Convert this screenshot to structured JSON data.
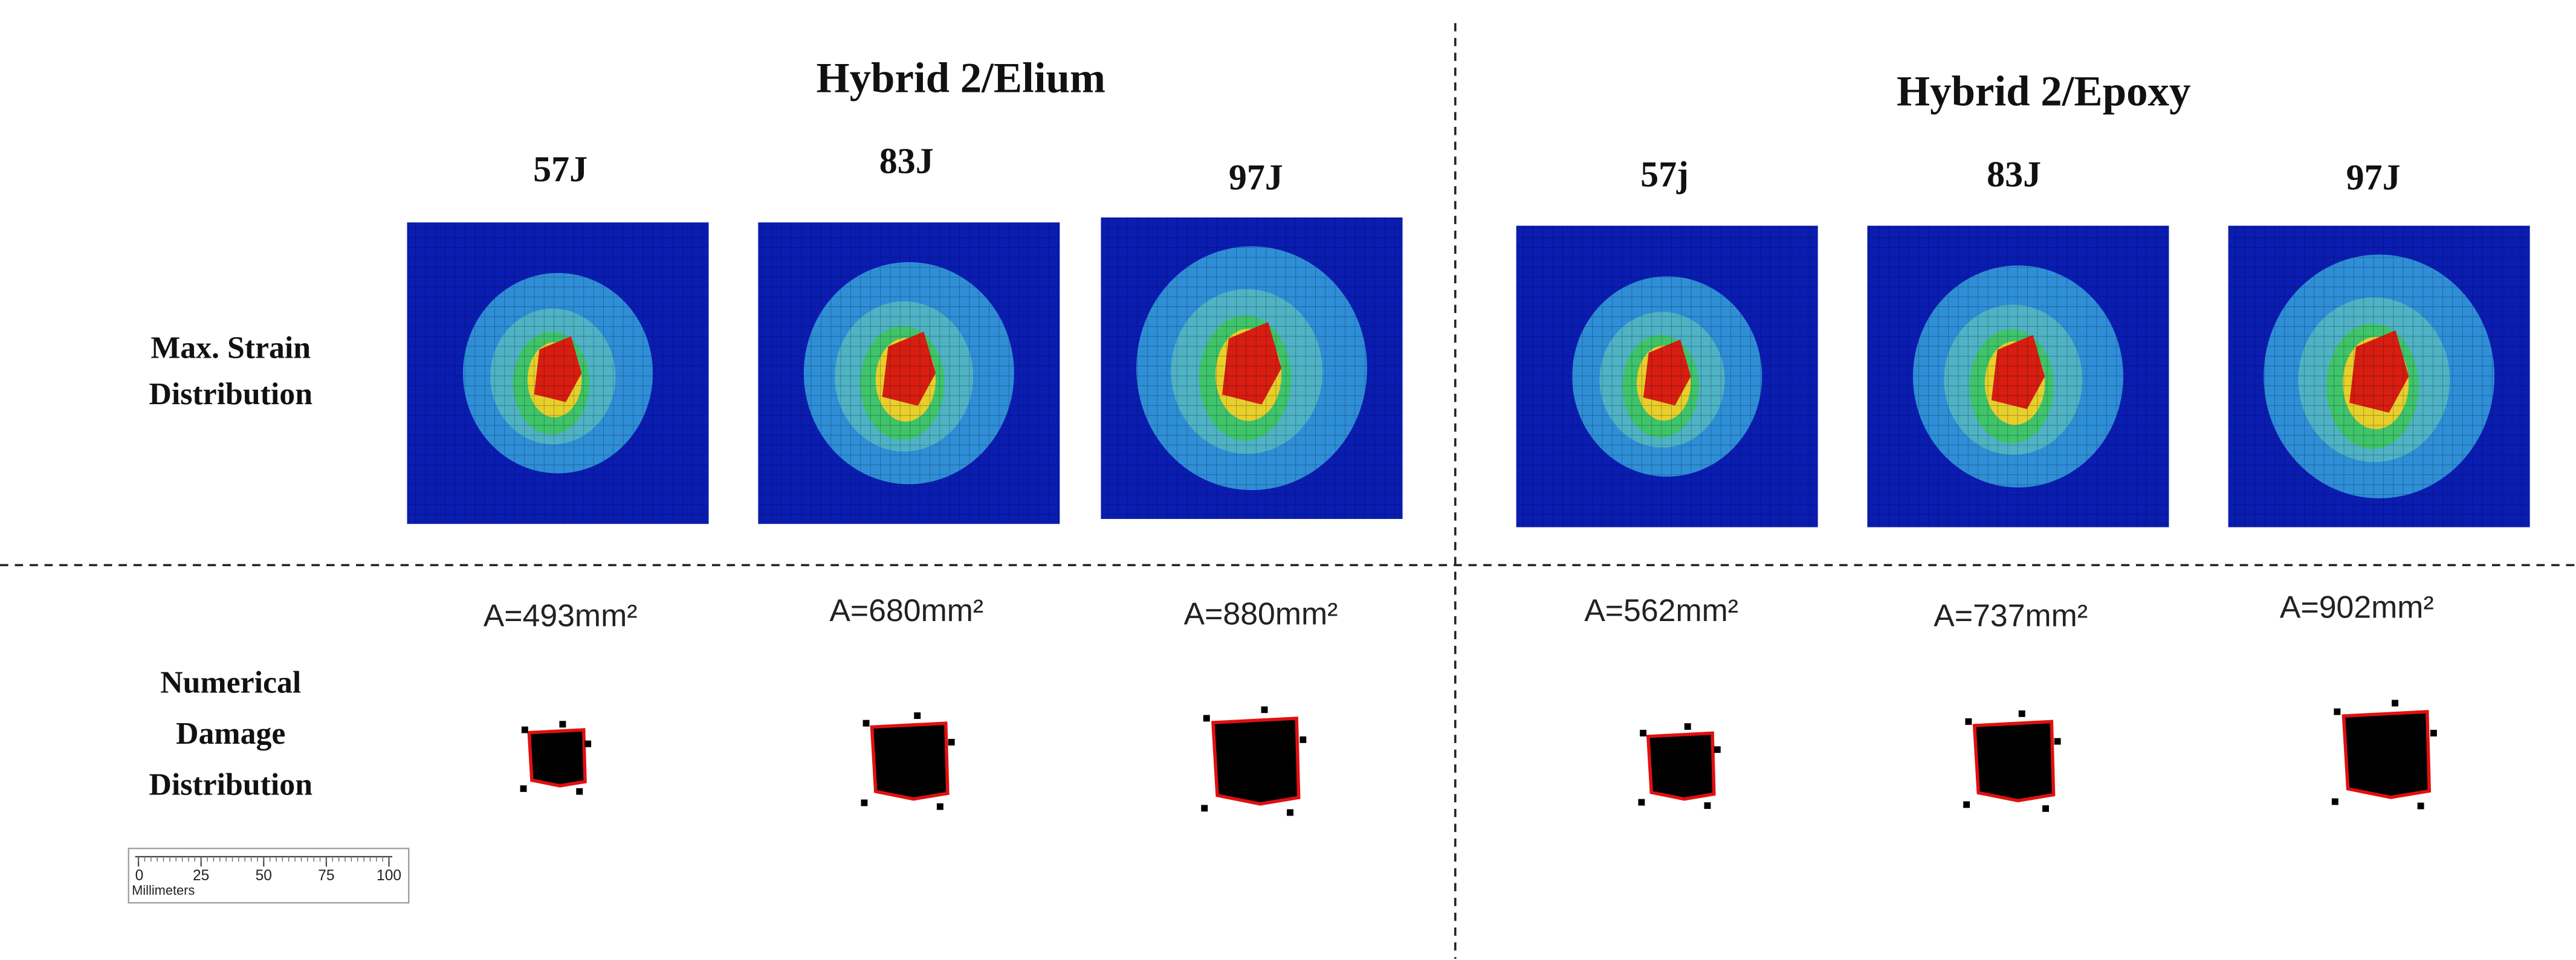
{
  "groups": [
    {
      "title": "Hybrid  2/Elium",
      "energies": [
        "57J",
        "83J",
        "97J"
      ],
      "areas": [
        "A=493mm²",
        "A=680mm²",
        "A=880mm²"
      ]
    },
    {
      "title": "Hybrid  2/Epoxy",
      "energies": [
        "57j",
        "83J",
        "97J"
      ],
      "areas": [
        "A=562mm²",
        "A=737mm²",
        "A=902mm²"
      ]
    }
  ],
  "row_labels": {
    "strain": [
      "Max. Strain",
      "Distribution"
    ],
    "damage": [
      "Numerical",
      "Damage",
      "Distribution"
    ]
  },
  "scale_bar": {
    "ticks": [
      "0",
      "25",
      "50",
      "75",
      "100"
    ],
    "unit": "Millimeters"
  }
}
